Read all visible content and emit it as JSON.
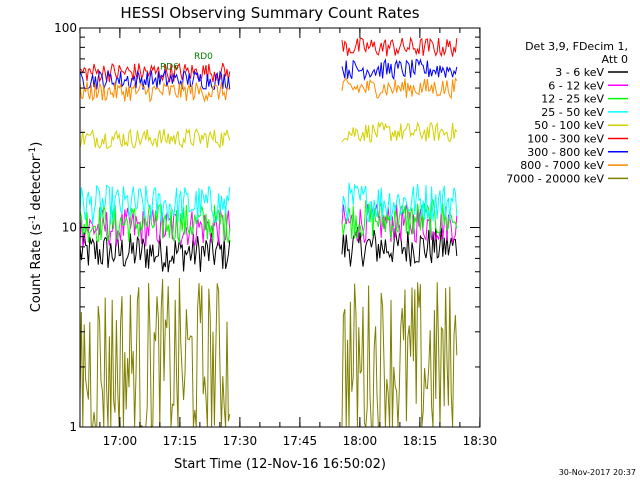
{
  "chart_data": {
    "type": "line",
    "title": "HESSI Observing Summary Count Rates",
    "xlabel": "Start Time (12-Nov-16 16:50:02)",
    "ylabel_main": "Count Rate (s",
    "ylabel_sup": "-1",
    "ylabel_tail": " detector",
    "ylabel_end": ")",
    "yscale": "log",
    "ylim": [
      1,
      100
    ],
    "xlim_minutes": [
      0,
      100
    ],
    "x_ticks": [
      {
        "label": "17:00",
        "minute": 9.97
      },
      {
        "label": "17:15",
        "minute": 24.97
      },
      {
        "label": "17:30",
        "minute": 39.97
      },
      {
        "label": "17:45",
        "minute": 54.97
      },
      {
        "label": "18:00",
        "minute": 69.97
      },
      {
        "label": "18:15",
        "minute": 84.97
      },
      {
        "label": "18:30",
        "minute": 99.97
      }
    ],
    "y_ticks": [
      {
        "label": "1",
        "value": 1
      },
      {
        "label": "10",
        "value": 10
      },
      {
        "label": "100",
        "value": 100
      }
    ],
    "legend_header": [
      "Det 3,9, FDecim 1,",
      "Att 0"
    ],
    "series": [
      {
        "name": "3 - 6 keV",
        "color": "#000000"
      },
      {
        "name": "6 - 12 keV",
        "color": "#ff00ff"
      },
      {
        "name": "12 - 25 keV",
        "color": "#00ff00"
      },
      {
        "name": "25 - 50 keV",
        "color": "#00ffff"
      },
      {
        "name": "50 - 100 keV",
        "color": "#d2d200"
      },
      {
        "name": "100 - 300 keV",
        "color": "#ff0000"
      },
      {
        "name": "300 - 800 keV",
        "color": "#0000ff"
      },
      {
        "name": "800 - 7000 keV",
        "color": "#ff8c00"
      },
      {
        "name": "7000 - 20000 keV",
        "color": "#808000"
      }
    ],
    "levels": [
      {
        "name": "3 - 6 keV",
        "seg1": 7.5,
        "seg2": 8
      },
      {
        "name": "6 - 12 keV",
        "seg1": 10,
        "seg2": 10.5
      },
      {
        "name": "12 - 25 keV",
        "seg1": 10.5,
        "seg2": 11
      },
      {
        "name": "25 - 50 keV",
        "seg1": 13,
        "seg2": 13.5
      },
      {
        "name": "50 - 100 keV",
        "seg1": 28,
        "seg2": 30
      },
      {
        "name": "100 - 300 keV",
        "seg1": 60,
        "seg2": 80
      },
      {
        "name": "300 - 800 keV",
        "seg1": 55,
        "seg2": 62
      },
      {
        "name": "800 - 7000 keV",
        "seg1": 48,
        "seg2": 50
      },
      {
        "name": "7000 - 20000 keV",
        "seg1": 2,
        "seg2": 2
      }
    ],
    "segments_minutes": [
      [
        0,
        37.5
      ],
      [
        65.5,
        94.5
      ]
    ],
    "annotations": [
      {
        "text": "RD0",
        "color": "#008000",
        "minute": 28.5,
        "value": 70
      },
      {
        "text": "RD6",
        "color": "#008000",
        "minute": 20,
        "value": 62
      }
    ],
    "timestamp": "30-Nov-2017 20:37"
  }
}
